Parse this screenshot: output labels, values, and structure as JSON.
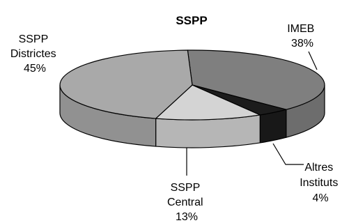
{
  "chart_data": {
    "type": "pie",
    "title": "SSPP",
    "slices": [
      {
        "label_lines": [
          "IMEB"
        ],
        "value": 38,
        "value_label": "38%",
        "color": "#7f7f7f"
      },
      {
        "label_lines": [
          "Altres",
          "Instituts"
        ],
        "value": 4,
        "value_label": "4%",
        "color": "#1c1c1c"
      },
      {
        "label_lines": [
          "SSPP",
          "Central"
        ],
        "value": 13,
        "value_label": "13%",
        "color": "#d4d4d4"
      },
      {
        "label_lines": [
          "SSPP",
          "Districtes"
        ],
        "value": 45,
        "value_label": "45%",
        "color": "#a9a9a9"
      }
    ]
  }
}
